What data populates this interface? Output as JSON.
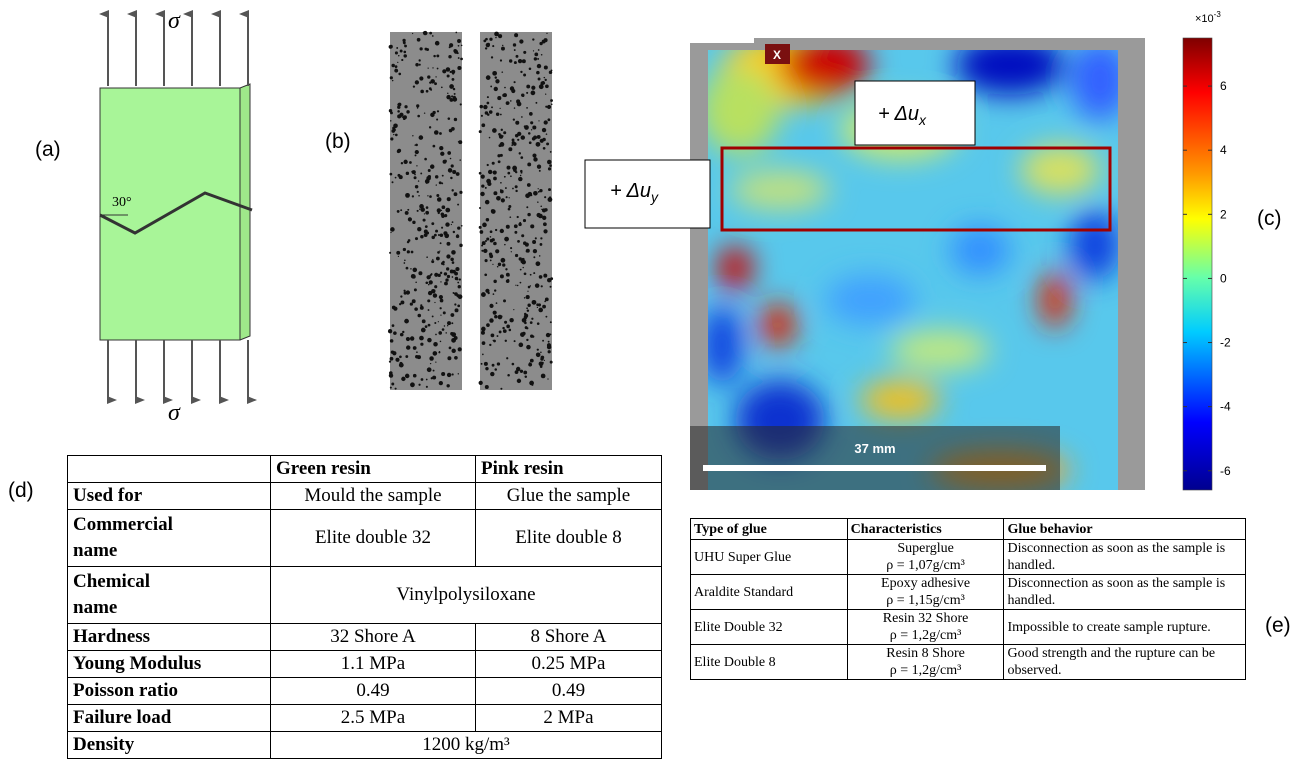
{
  "panels": {
    "a": "(a)",
    "b": "(b)",
    "c": "(c)",
    "d": "(d)",
    "e": "(e)"
  },
  "panel_a": {
    "sigma_top": "σ",
    "sigma_bottom": "σ",
    "angle": "30°"
  },
  "panel_c": {
    "ux": {
      "text": "+ Δu",
      "sub": "x"
    },
    "uy": {
      "text": "+ Δu",
      "sub": "y"
    },
    "axis_marker": "X",
    "scale_bar": "37 mm",
    "colorbar": {
      "multiplier": "×10",
      "exponent": "-3",
      "lim": [
        -6.6,
        7.5
      ],
      "ticks": [
        6,
        4,
        2,
        0,
        -2,
        -4,
        -6
      ]
    }
  },
  "table_d": {
    "headers": [
      "Green resin",
      "Pink resin"
    ],
    "rows": [
      [
        "Used for",
        "Mould the sample",
        "Glue the sample"
      ],
      [
        "Commercial name",
        "Elite double 32",
        "Elite double 8"
      ],
      [
        "Chemical name",
        "Vinylpolysiloxane"
      ],
      [
        "Hardness",
        "32 Shore A",
        "8 Shore A"
      ],
      [
        "Young Modulus",
        "1.1 MPa",
        "0.25 MPa"
      ],
      [
        "Poisson ratio",
        "0.49",
        "0.49"
      ],
      [
        "Failure load",
        "2.5 MPa",
        "2 MPa"
      ],
      [
        "Density",
        "1200 kg/m³"
      ]
    ]
  },
  "table_e": {
    "headers": [
      "Type of glue",
      "Characteristics",
      "Glue behavior"
    ],
    "rows": [
      {
        "glue": "UHU Super Glue",
        "characteristic": "Superglue",
        "density": "ρ = 1,07g/cm³",
        "behavior": "Disconnection as soon as the sample is handled."
      },
      {
        "glue": "Araldite Standard",
        "characteristic": "Epoxy adhesive",
        "density": "ρ = 1,15g/cm³",
        "behavior": "Disconnection as soon as the sample is handled."
      },
      {
        "glue": "Elite Double 32",
        "characteristic": "Resin 32 Shore",
        "density": "ρ = 1,2g/cm³",
        "behavior": "Impossible to create sample rupture."
      },
      {
        "glue": "Elite Double 8",
        "characteristic": "Resin 8 Shore",
        "density": "ρ = 1,2g/cm³",
        "behavior": "Good strength and the rupture can be observed."
      }
    ]
  }
}
